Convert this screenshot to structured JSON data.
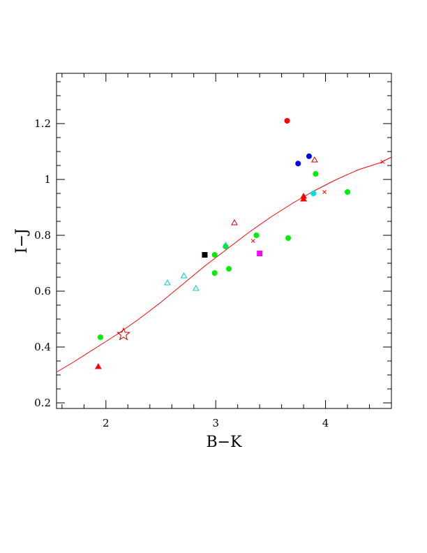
{
  "chart_data": {
    "type": "scatter",
    "xlabel": "B−K",
    "ylabel": "I−J",
    "xlim": [
      1.55,
      4.6
    ],
    "ylim": [
      0.18,
      1.38
    ],
    "x_ticks": [
      {
        "value": 2,
        "label": "2"
      },
      {
        "value": 3,
        "label": "3"
      },
      {
        "value": 4,
        "label": "4"
      }
    ],
    "y_ticks": [
      {
        "value": 0.2,
        "label": "0.2"
      },
      {
        "value": 0.4,
        "label": "0.4"
      },
      {
        "value": 0.6,
        "label": "0.6"
      },
      {
        "value": 0.8,
        "label": "0.8"
      },
      {
        "value": 1.0,
        "label": "1"
      },
      {
        "value": 1.2,
        "label": "1.2"
      }
    ],
    "x_minor_step": 0.2,
    "y_minor_step": 0.05,
    "grid": false,
    "points": [
      {
        "x": 1.93,
        "y": 0.33,
        "marker": "triangle",
        "color": "#ff0000",
        "filled": true
      },
      {
        "x": 1.95,
        "y": 0.435,
        "marker": "circle",
        "color": "#00ee00",
        "filled": true
      },
      {
        "x": 2.16,
        "y": 0.445,
        "marker": "star",
        "color": "#cc0000",
        "filled": false
      },
      {
        "x": 2.56,
        "y": 0.63,
        "marker": "triangle",
        "color": "#00cccc",
        "filled": false
      },
      {
        "x": 2.71,
        "y": 0.655,
        "marker": "triangle",
        "color": "#00cccc",
        "filled": false
      },
      {
        "x": 2.82,
        "y": 0.61,
        "marker": "triangle",
        "color": "#00cccc",
        "filled": false
      },
      {
        "x": 2.9,
        "y": 0.73,
        "marker": "square",
        "color": "#000000",
        "filled": true
      },
      {
        "x": 2.99,
        "y": 0.73,
        "marker": "circle",
        "color": "#00ee00",
        "filled": true
      },
      {
        "x": 2.99,
        "y": 0.665,
        "marker": "circle",
        "color": "#00ee00",
        "filled": true
      },
      {
        "x": 3.09,
        "y": 0.76,
        "marker": "circle",
        "color": "#00ee00",
        "filled": true
      },
      {
        "x": 3.09,
        "y": 0.765,
        "marker": "triangle",
        "color": "#00cccc",
        "filled": false
      },
      {
        "x": 3.12,
        "y": 0.68,
        "marker": "circle",
        "color": "#00ee00",
        "filled": true
      },
      {
        "x": 3.17,
        "y": 0.845,
        "marker": "triangle",
        "color": "#cc0000",
        "filled": false
      },
      {
        "x": 3.37,
        "y": 0.8,
        "marker": "circle",
        "color": "#00ee00",
        "filled": true
      },
      {
        "x": 3.4,
        "y": 0.735,
        "marker": "square",
        "color": "#ff00ff",
        "filled": true
      },
      {
        "x": 3.65,
        "y": 1.21,
        "marker": "circle",
        "color": "#ff0000",
        "filled": true
      },
      {
        "x": 3.66,
        "y": 0.79,
        "marker": "circle",
        "color": "#00ee00",
        "filled": true
      },
      {
        "x": 3.75,
        "y": 1.057,
        "marker": "circle",
        "color": "#0000ee",
        "filled": true
      },
      {
        "x": 3.8,
        "y": 0.93,
        "marker": "triangle",
        "color": "#ff0000",
        "filled": true
      },
      {
        "x": 3.8,
        "y": 0.94,
        "marker": "triangle",
        "color": "#ff0000",
        "filled": true
      },
      {
        "x": 3.85,
        "y": 1.083,
        "marker": "circle",
        "color": "#0000ee",
        "filled": true
      },
      {
        "x": 3.89,
        "y": 0.95,
        "marker": "circle",
        "color": "#00dddd",
        "filled": true
      },
      {
        "x": 3.9,
        "y": 1.07,
        "marker": "triangle",
        "color": "#cc0000",
        "filled": false
      },
      {
        "x": 3.91,
        "y": 1.02,
        "marker": "circle",
        "color": "#00ee00",
        "filled": true
      },
      {
        "x": 4.2,
        "y": 0.955,
        "marker": "circle",
        "color": "#00ee00",
        "filled": true
      }
    ],
    "curve": {
      "color": "#ff0000",
      "x": [
        1.55,
        1.7,
        1.9,
        2.1,
        2.3,
        2.5,
        2.7,
        2.9,
        3.1,
        3.3,
        3.5,
        3.7,
        3.9,
        4.1,
        4.3,
        4.5,
        4.6
      ],
      "y": [
        0.31,
        0.345,
        0.395,
        0.445,
        0.5,
        0.56,
        0.625,
        0.69,
        0.75,
        0.81,
        0.865,
        0.915,
        0.96,
        1.0,
        1.035,
        1.06,
        1.08
      ]
    },
    "curve_markers": {
      "color": "#ff0000",
      "x": [
        3.34,
        3.99,
        4.52
      ],
      "y": [
        0.78,
        0.955,
        1.063
      ]
    }
  }
}
